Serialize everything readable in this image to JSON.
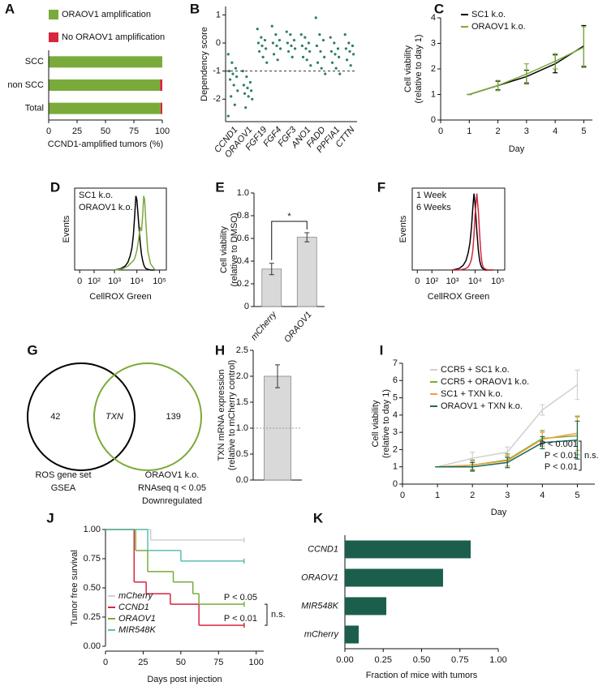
{
  "chart_data": [
    {
      "type": "hbar_stacked",
      "panel": "A",
      "categories": [
        "SCC",
        "non SCC",
        "Total"
      ],
      "series": [
        {
          "name": "ORAOV1 amplification",
          "color": "#7aab3a",
          "values": [
            100,
            98,
            98.5
          ]
        },
        {
          "name": "No ORAOV1 amplification",
          "color": "#d7263d",
          "values": [
            0,
            2,
            1.5
          ]
        }
      ],
      "xlim": [
        0,
        100
      ],
      "xticks": [
        0,
        25,
        50,
        75,
        100
      ],
      "xlabel": "CCND1-amplified tumors (%)"
    },
    {
      "type": "strip",
      "panel": "B",
      "categories": [
        "CCND1",
        "ORAOV1",
        "FGF19",
        "FGF4",
        "FGF3",
        "ANO1",
        "FADD",
        "PPFIA1",
        "CTTN"
      ],
      "values": [
        [
          -0.4,
          -0.7,
          -0.9,
          -1.0,
          -1.1,
          -1.2,
          -1.3,
          -1.5,
          -1.7,
          -1.9,
          -2.2,
          -2.6
        ],
        [
          -1.0,
          -1.2,
          -1.4,
          -1.5,
          -1.6,
          -1.7,
          -1.8,
          -1.9,
          -2.0,
          -2.3
        ],
        [
          0.5,
          0.2,
          0.1,
          0,
          -0.1,
          -0.2,
          -0.3,
          -0.5,
          -0.7
        ],
        [
          0.6,
          0.3,
          0.1,
          0,
          -0.1,
          -0.2,
          -0.4,
          -0.6
        ],
        [
          0.4,
          0.3,
          0.1,
          0,
          -0.1,
          -0.2,
          -0.3,
          -0.5
        ],
        [
          0.3,
          0.2,
          0,
          -0.1,
          -0.2,
          -0.3,
          -0.5,
          -0.6,
          -0.8
        ],
        [
          0.9,
          0.3,
          0.1,
          -0.1,
          -0.3,
          -0.5,
          -0.7,
          -0.9,
          -1.1
        ],
        [
          0.2,
          0,
          -0.2,
          -0.3,
          -0.4,
          -0.5,
          -0.7,
          -0.9,
          -1.1
        ],
        [
          0.3,
          0,
          -0.1,
          -0.2,
          -0.3,
          -0.4,
          -0.6,
          -0.8
        ]
      ],
      "color": "#2e7d6b",
      "ylim": [
        -2.8,
        1.3
      ],
      "yticks": [
        -2,
        -1,
        0,
        1
      ],
      "hline": -1,
      "ylabel": "Dependency score"
    },
    {
      "type": "line",
      "panel": "C",
      "x": [
        1,
        2,
        3,
        4,
        5
      ],
      "series": [
        {
          "name": "SC1 k.o.",
          "color": "#000000",
          "values": [
            1,
            1.35,
            1.7,
            2.2,
            2.9
          ],
          "errors": [
            0,
            0.17,
            0.25,
            0.35,
            0.8
          ]
        },
        {
          "name": "ORAOV1 k.o.",
          "color": "#7aab3a",
          "values": [
            1,
            1.35,
            1.8,
            2.3,
            2.85
          ],
          "errors": [
            0,
            0.2,
            0.4,
            0.3,
            0.8
          ]
        }
      ],
      "xlim": [
        0,
        5.3
      ],
      "xticks": [
        0,
        1,
        2,
        3,
        4,
        5
      ],
      "ylim": [
        0,
        4
      ],
      "yticks": [
        0,
        1,
        2,
        3,
        4
      ],
      "xlabel": "Day",
      "ylabel": [
        "Cell viability",
        "(relative to day 1)"
      ]
    },
    {
      "type": "flow_histogram",
      "panel": "D",
      "xscale": "logicle",
      "x": [
        1000,
        2000,
        3000,
        4000,
        5000,
        6000,
        7000,
        8000,
        9000,
        10000,
        12000,
        14000,
        16000,
        18000,
        20000,
        22000,
        25000,
        30000,
        40000,
        60000
      ],
      "series": [
        {
          "name": "SC1 k.o.",
          "color": "#000000",
          "values": [
            0,
            2,
            5,
            10,
            18,
            28,
            45,
            70,
            95,
            90,
            60,
            35,
            20,
            12,
            7,
            4,
            2,
            1,
            0,
            0
          ]
        },
        {
          "name": "ORAOV1 k.o.",
          "color": "#7aab3a",
          "values": [
            0,
            1,
            3,
            5,
            8,
            10,
            12,
            15,
            20,
            25,
            40,
            55,
            50,
            70,
            95,
            90,
            60,
            25,
            8,
            1
          ]
        }
      ],
      "xlim": [
        -20,
        200000
      ],
      "xticks": [
        0,
        {
          "value": 100,
          "label": "10²"
        },
        {
          "value": 1000,
          "label": "10³"
        },
        {
          "value": 10000,
          "label": "10⁴"
        },
        {
          "value": 100000,
          "label": "10⁵"
        }
      ],
      "ylim": [
        0,
        105
      ],
      "xlabel": "CellROX Green",
      "ylabel": "Events"
    },
    {
      "type": "bar",
      "panel": "E",
      "categories": [
        "mCherry",
        "ORAOV1"
      ],
      "values": [
        0.33,
        0.61
      ],
      "errors": [
        0.05,
        0.04
      ],
      "color": "#d9d9d9",
      "ylim": [
        0,
        1
      ],
      "yticks": [
        0,
        0.2,
        0.4,
        0.6,
        0.8,
        {
          "value": 1,
          "label": "1.0"
        }
      ],
      "significance": "*",
      "ylabel": [
        "Cell viability",
        "(relative to DMSO)"
      ]
    },
    {
      "type": "flow_histogram",
      "panel": "F",
      "xscale": "logicle",
      "x": [
        1000,
        2000,
        3000,
        4000,
        5000,
        6000,
        7000,
        8000,
        9000,
        10000,
        12000,
        14000,
        16000,
        18000,
        20000,
        22000,
        25000,
        30000,
        40000,
        60000
      ],
      "series": [
        {
          "name": "1 Week",
          "color": "#000000",
          "values": [
            0,
            2,
            6,
            12,
            22,
            35,
            55,
            80,
            98,
            85,
            50,
            25,
            12,
            6,
            3,
            2,
            1,
            0,
            0,
            0
          ]
        },
        {
          "name": "6 Weeks",
          "color": "#d7263d",
          "values": [
            0,
            0,
            1,
            2,
            4,
            8,
            14,
            25,
            45,
            70,
            98,
            75,
            45,
            22,
            10,
            5,
            2,
            1,
            0,
            0
          ]
        }
      ],
      "xlim": [
        -20,
        200000
      ],
      "xticks": [
        0,
        {
          "value": 100,
          "label": "10²"
        },
        {
          "value": 1000,
          "label": "10³"
        },
        {
          "value": 10000,
          "label": "10⁴"
        },
        {
          "value": 100000,
          "label": "10⁵"
        }
      ],
      "ylim": [
        0,
        105
      ],
      "xlabel": "CellROX Green",
      "ylabel": "Events"
    },
    {
      "type": "venn",
      "panel": "G",
      "sets": [
        {
          "label": [
            "ROS gene set",
            "GSEA"
          ],
          "value": 42,
          "color": "#000000"
        },
        {
          "label": [
            "ORAOV1 k.o.",
            "RNAseq q < 0.05",
            "Downregulated"
          ],
          "value": 139,
          "color": "#7aab3a"
        }
      ],
      "intersection": "TXN"
    },
    {
      "type": "bar",
      "panel": "H",
      "categories": [
        null
      ],
      "values": [
        2.0
      ],
      "errors": [
        0.22
      ],
      "color": "#d9d9d9",
      "hline": 1,
      "ylim": [
        0,
        2.5
      ],
      "yticks": [
        {
          "value": 0,
          "label": "0.0"
        },
        0.5,
        {
          "value": 1,
          "label": "1.0"
        },
        1.5,
        {
          "value": 2,
          "label": "2.0"
        },
        2.5
      ],
      "ylabel": [
        "TXN mRNA expression",
        "(relative to mCherry control)"
      ]
    },
    {
      "type": "line",
      "panel": "I",
      "x": [
        1,
        2,
        3,
        4,
        5
      ],
      "series": [
        {
          "name": "CCR5 + SC1 k.o.",
          "color": "#d0d0d0",
          "values": [
            1,
            1.5,
            1.85,
            4.3,
            5.75
          ],
          "errors": [
            0,
            0.35,
            0.3,
            0.3,
            0.85
          ]
        },
        {
          "name": "CCR5 + ORAOV1 k.o.",
          "color": "#7aab3a",
          "values": [
            1,
            1.1,
            1.4,
            2.65,
            2.8
          ],
          "errors": [
            0,
            0.3,
            0.35,
            0.45,
            1.1
          ]
        },
        {
          "name": "SC1 + TXN k.o.",
          "color": "#f0a03a",
          "values": [
            1,
            1.1,
            1.35,
            2.6,
            2.95
          ],
          "errors": [
            0,
            0.25,
            0.3,
            0.4,
            1.0
          ]
        },
        {
          "name": "ORAOV1 + TXN k.o.",
          "color": "#1b6b58",
          "values": [
            1,
            1.0,
            1.25,
            2.4,
            2.55
          ],
          "errors": [
            0,
            0.25,
            0.3,
            0.35,
            1.1
          ]
        }
      ],
      "annotations": [
        {
          "text": "P < 0.001",
          "color": "#7aab3a"
        },
        {
          "text": "P < 0.01",
          "color": "#f0a03a"
        },
        {
          "text": "P < 0.01",
          "color": "#1b6b58"
        }
      ],
      "bracket_label": "n.s.",
      "xlim": [
        0,
        5.5
      ],
      "xticks": [
        0,
        1,
        2,
        3,
        4,
        5
      ],
      "ylim": [
        0,
        7
      ],
      "yticks": [
        0,
        1,
        2,
        3,
        4,
        5,
        6,
        7
      ],
      "xlabel": "Day",
      "ylabel": [
        "Cell viability",
        "(relative to day 1)"
      ]
    },
    {
      "type": "survival",
      "panel": "J",
      "series": [
        {
          "name": "mCherry",
          "color": "#d0d0d0",
          "x": [
            0,
            30,
            92
          ],
          "values": [
            1,
            0.91,
            0.91
          ]
        },
        {
          "name": "CCND1",
          "color": "#d7263d",
          "x": [
            0,
            19,
            27,
            43,
            62,
            92
          ],
          "values": [
            1,
            0.55,
            0.45,
            0.36,
            0.18,
            0.18
          ]
        },
        {
          "name": "ORAOV1",
          "color": "#7aab3a",
          "x": [
            0,
            20,
            28,
            45,
            58,
            62,
            92
          ],
          "values": [
            1,
            0.82,
            0.64,
            0.55,
            0.45,
            0.36,
            0.36
          ]
        },
        {
          "name": "MIR548K",
          "color": "#5bbfb0",
          "x": [
            0,
            28,
            50,
            92
          ],
          "values": [
            1,
            0.82,
            0.73,
            0.73
          ]
        }
      ],
      "annotations": [
        {
          "text": "P < 0.05",
          "color": "#7aab3a"
        },
        {
          "text": "P < 0.01",
          "color": "#d7263d"
        }
      ],
      "bracket_label": "n.s.",
      "xlim": [
        0,
        105
      ],
      "xticks": [
        0,
        25,
        50,
        75,
        100
      ],
      "ylim": [
        0,
        1
      ],
      "yticks": [
        {
          "value": 0,
          "label": "0.00"
        },
        0.25,
        {
          "value": 0.5,
          "label": "0.50"
        },
        0.75,
        {
          "value": 1,
          "label": "1.00"
        }
      ],
      "xlabel": "Days post injection",
      "ylabel": "Tumor free survival"
    },
    {
      "type": "hbar",
      "panel": "K",
      "categories": [
        "CCND1",
        "ORAOV1",
        "MIR548K",
        "mCherry"
      ],
      "values": [
        0.82,
        0.64,
        0.27,
        0.09
      ],
      "color": "#1c5e4c",
      "xlim": [
        0,
        1
      ],
      "xticks": [
        {
          "value": 0,
          "label": "0.00"
        },
        0.25,
        {
          "value": 0.5,
          "label": "0.50"
        },
        0.75,
        {
          "value": 1,
          "label": "1.00"
        }
      ],
      "xlabel": "Fraction of mice with tumors"
    }
  ]
}
